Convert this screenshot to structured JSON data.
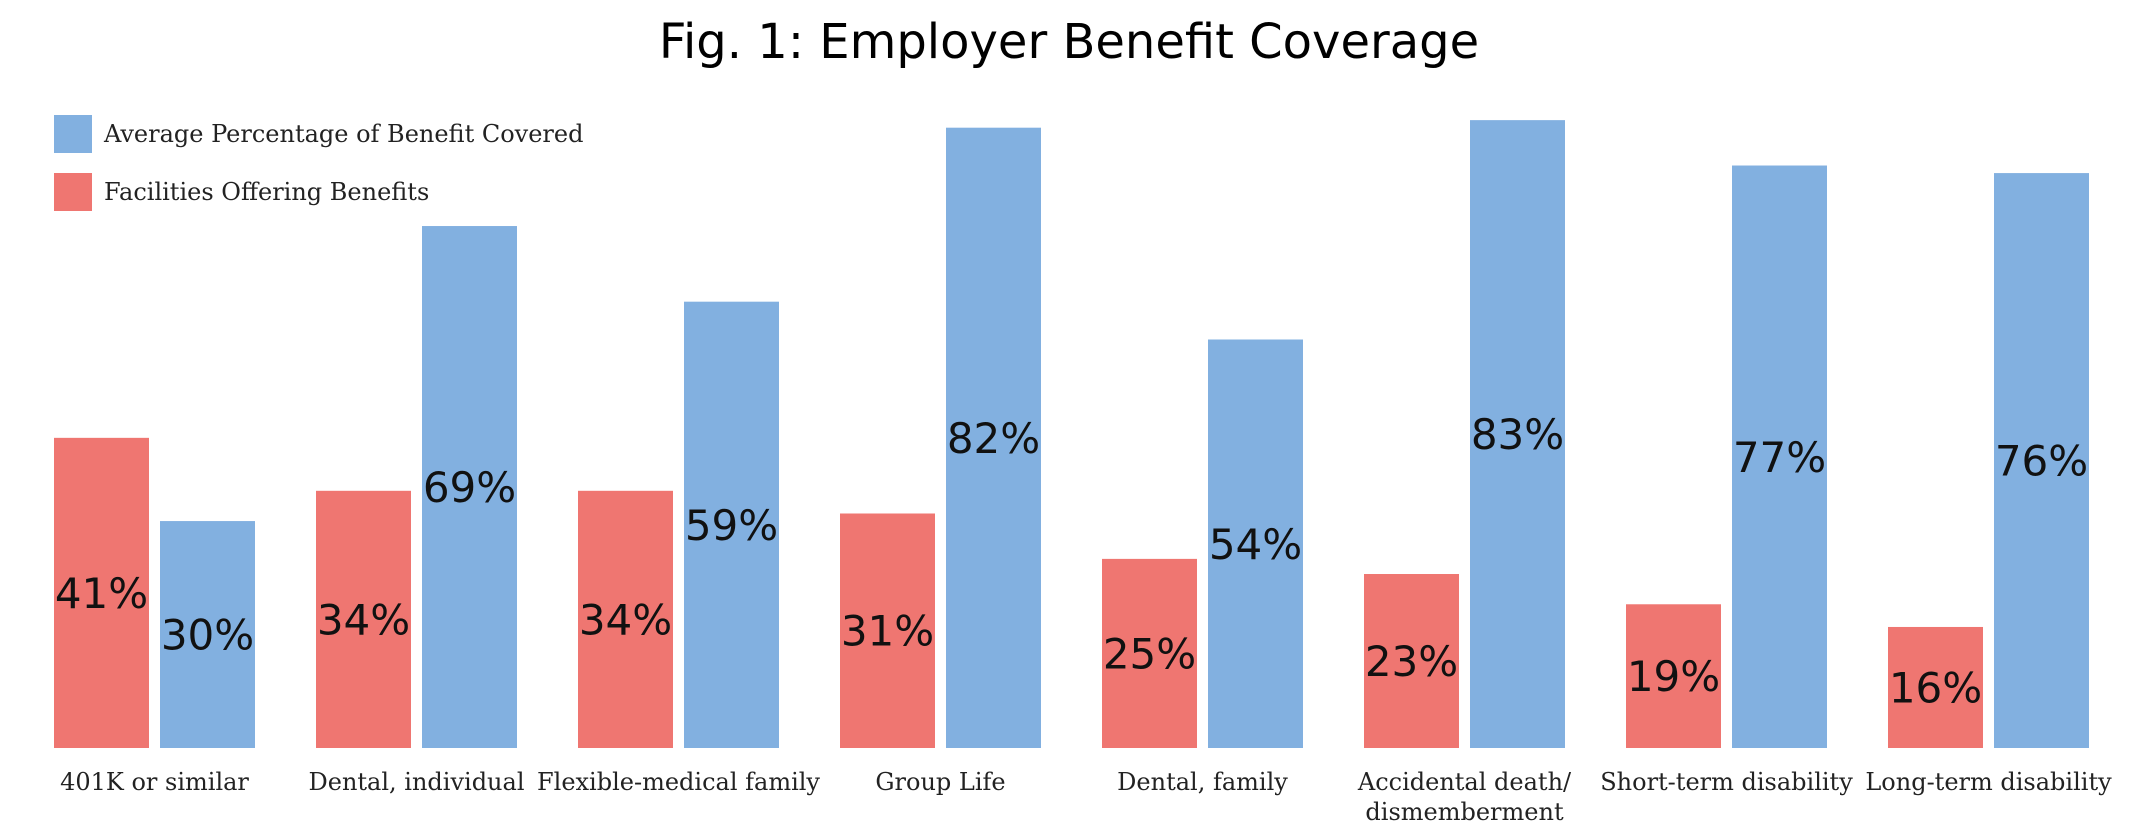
{
  "chart_data": {
    "type": "bar",
    "title": "Fig. 1: Employer Benefit Coverage",
    "categories": [
      "401K or similar",
      "Dental, individual",
      "Flexible-medical family",
      "Group Life",
      "Dental, family",
      "Accidental death/\ndismemberment",
      "Short-term disability",
      "Long-term disability"
    ],
    "series": [
      {
        "name": "Facilities Offering Benefits",
        "color": "#ef7671",
        "values": [
          41,
          34,
          34,
          31,
          25,
          23,
          19,
          16
        ],
        "labels": [
          "41%",
          "34%",
          "34%",
          "31%",
          "25%",
          "23%",
          "19%",
          "16%"
        ]
      },
      {
        "name": "Average Percentage of Benefit Covered",
        "color": "#82b0e0",
        "values": [
          30,
          69,
          59,
          82,
          54,
          83,
          77,
          76
        ],
        "labels": [
          "30%",
          "69%",
          "59%",
          "82%",
          "54%",
          "83%",
          "77%",
          "76%"
        ]
      }
    ],
    "legend": {
      "position": "top-left",
      "order": [
        1,
        0
      ]
    },
    "ylim": [
      0,
      85
    ],
    "grid": false,
    "xlabel": "",
    "ylabel": ""
  }
}
